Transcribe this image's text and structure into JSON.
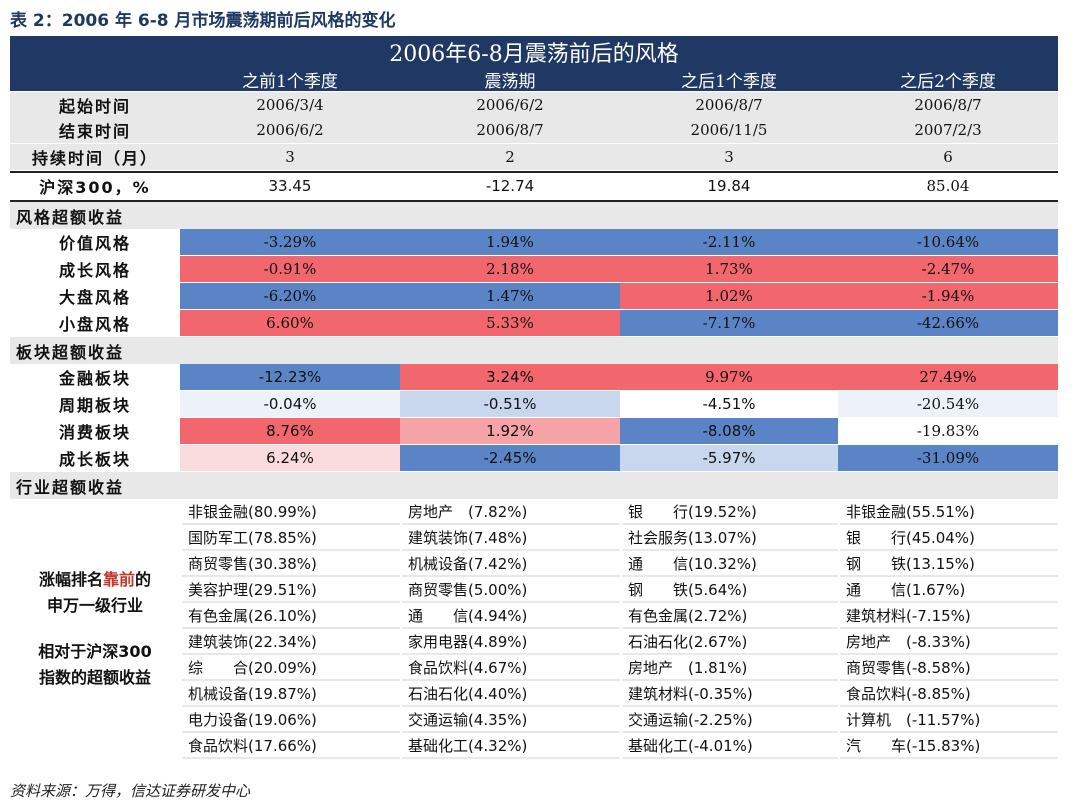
{
  "caption": "表 2：2006 年 6-8 月市场震荡期前后风格的变化",
  "table": {
    "title": "2006年6-8月震荡前后的风格",
    "columns": [
      "之前1个季度",
      "震荡期",
      "之后1个季度",
      "之后2个季度"
    ],
    "start_label": "起始时间",
    "end_label": "结束时间",
    "start": [
      "2006/3/4",
      "2006/6/2",
      "2006/8/7",
      "2006/8/7"
    ],
    "end": [
      "2006/6/2",
      "2006/8/7",
      "2006/11/5",
      "2007/2/3"
    ],
    "duration_label": "持续时间（月）",
    "duration": [
      "3",
      "2",
      "3",
      "6"
    ],
    "hs300_label": "沪深300，%",
    "hs300": [
      "33.45",
      "-12.74",
      "19.84",
      "85.04"
    ],
    "style_section": "风格超额收益",
    "style_rows": [
      {
        "label": "价值风格",
        "values": [
          "-3.29%",
          "1.94%",
          "-2.11%",
          "-10.64%"
        ]
      },
      {
        "label": "成长风格",
        "values": [
          "-0.91%",
          "2.18%",
          "1.73%",
          "-2.47%"
        ]
      },
      {
        "label": "大盘风格",
        "values": [
          "-6.20%",
          "1.47%",
          "1.02%",
          "-1.94%"
        ]
      },
      {
        "label": "小盘风格",
        "values": [
          "6.60%",
          "5.33%",
          "-7.17%",
          "-42.66%"
        ]
      }
    ],
    "sector_section": "板块超额收益",
    "sector_rows": [
      {
        "label": "金融板块",
        "values": [
          "-12.23%",
          "3.24%",
          "9.97%",
          "27.49%"
        ]
      },
      {
        "label": "周期板块",
        "values": [
          "-0.04%",
          "-0.51%",
          "-4.51%",
          "-20.54%"
        ]
      },
      {
        "label": "消费板块",
        "values": [
          "8.76%",
          "1.92%",
          "-8.08%",
          "-19.83%"
        ]
      },
      {
        "label": "成长板块",
        "values": [
          "6.24%",
          "-2.45%",
          "-5.97%",
          "-31.09%"
        ]
      }
    ],
    "industry_section": "行业超额收益",
    "industry_note": {
      "line1_pre": "涨幅排名",
      "line1_hl": "靠前",
      "line1_post": "的",
      "line2": "申万一级行业",
      "line3": "相对于沪深300",
      "line4": "指数的超额收益"
    },
    "industries": [
      [
        "非银金融(80.99%)",
        "国防军工(78.85%)",
        "商贸零售(30.38%)",
        "美容护理(29.51%)",
        "有色金属(26.10%)",
        "建筑装饰(22.34%)",
        "综　　合(20.09%)",
        "机械设备(19.87%)",
        "电力设备(19.06%)",
        "食品饮料(17.66%)"
      ],
      [
        "房地产　(7.82%)",
        "建筑装饰(7.48%)",
        "机械设备(7.42%)",
        "商贸零售(5.00%)",
        "通　　信(4.94%)",
        "家用电器(4.89%)",
        "食品饮料(4.67%)",
        "石油石化(4.40%)",
        "交通运输(4.35%)",
        "基础化工(4.32%)"
      ],
      [
        "银　　行(19.52%)",
        "社会服务(13.07%)",
        "通　　信(10.32%)",
        "钢　　铁(5.64%)",
        "有色金属(2.72%)",
        "石油石化(2.67%)",
        "房地产　(1.81%)",
        "建筑材料(-0.35%)",
        "交通运输(-2.25%)",
        "基础化工(-4.01%)"
      ],
      [
        "非银金融(55.51%)",
        "银　　行(45.04%)",
        "钢　　铁(13.15%)",
        "通　　信(1.67%)",
        "建筑材料(-7.15%)",
        "房地产　(-8.33%)",
        "商贸零售(-8.58%)",
        "食品饮料(-8.85%)",
        "计算机　(-11.57%)",
        "汽　　车(-15.83%)"
      ]
    ]
  },
  "source": "资料来源：万得，信达证券研发中心",
  "colors": {
    "header_navy": "#1f3864",
    "neg_blue": "#5b84c6",
    "pos_red": "#f2666d",
    "light_pink": "#f6a3a8",
    "light_blue": "#c9d7ee",
    "gray": "#e8e8e8"
  }
}
